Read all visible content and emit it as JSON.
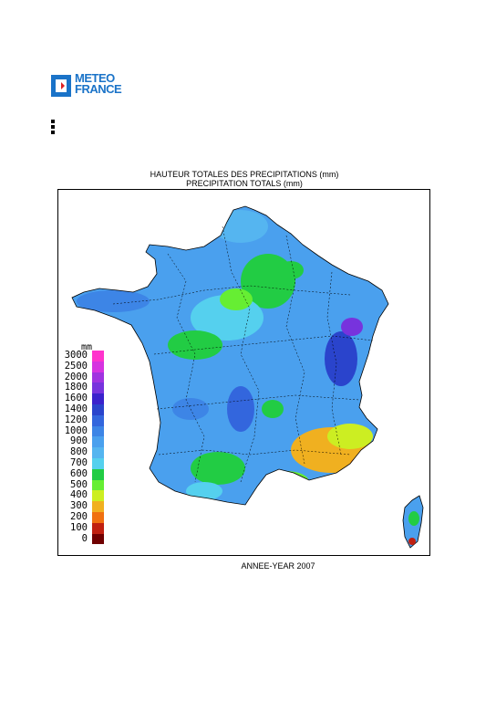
{
  "logo": {
    "line1": "METEO",
    "line2": "FRANCE",
    "color": "#1a73c8"
  },
  "title": {
    "line1": "HAUTEUR TOTALES DES PRECIPITATIONS (mm)",
    "line2": "PRECIPITATION TOTALS (mm)"
  },
  "legend": {
    "unit": "mm",
    "items": [
      {
        "label": "3000",
        "color": "#ff33cc"
      },
      {
        "label": "2500",
        "color": "#d633e0"
      },
      {
        "label": "2000",
        "color": "#a033e0"
      },
      {
        "label": "1800",
        "color": "#7733dd"
      },
      {
        "label": "1600",
        "color": "#3a22cc"
      },
      {
        "label": "1400",
        "color": "#2a44cc"
      },
      {
        "label": "1200",
        "color": "#3366dd"
      },
      {
        "label": "1000",
        "color": "#3d85e6"
      },
      {
        "label": "900",
        "color": "#4aa0ee"
      },
      {
        "label": "800",
        "color": "#55b5f0"
      },
      {
        "label": "700",
        "color": "#55d0ee"
      },
      {
        "label": "600",
        "color": "#22cc44"
      },
      {
        "label": "500",
        "color": "#66ee33"
      },
      {
        "label": "400",
        "color": "#ccee22"
      },
      {
        "label": "300",
        "color": "#f0b020"
      },
      {
        "label": "200",
        "color": "#f07010"
      },
      {
        "label": "100",
        "color": "#c02010"
      },
      {
        "label": "0",
        "color": "#700000"
      }
    ]
  },
  "footer": {
    "year_label": "ANNEE-YEAR 2007"
  }
}
